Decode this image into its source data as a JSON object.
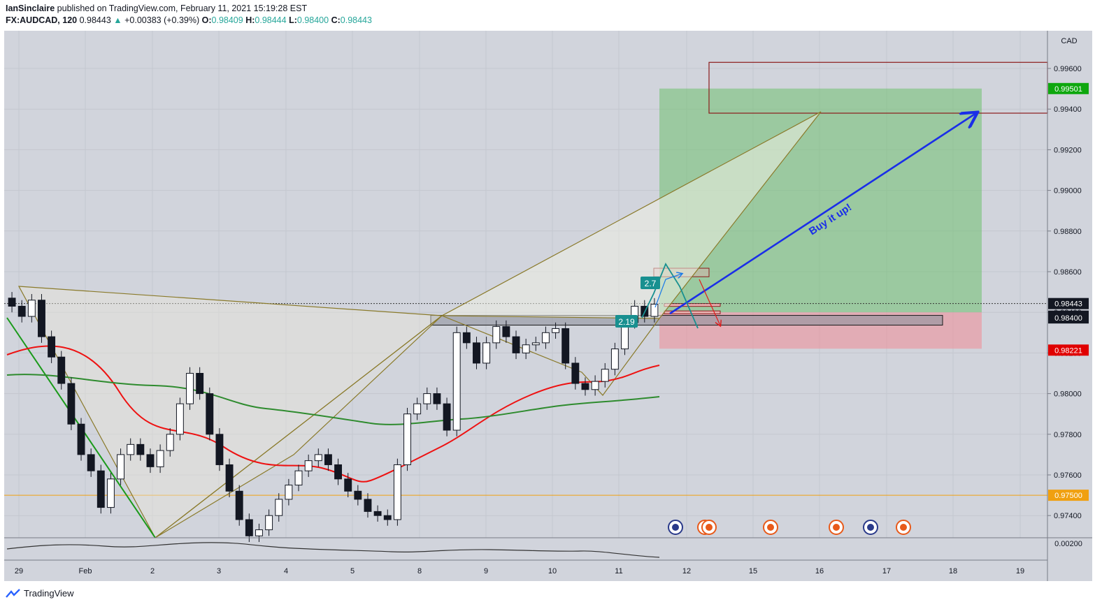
{
  "header": {
    "author": "IanSinclaire",
    "published": "published on TradingView.com, February 11, 2021 15:19:28 EST",
    "symbol": "FX:AUDCAD, 120",
    "last": "0.98443",
    "change": "+0.00383 (+0.39%)",
    "ohlc": [
      {
        "label": "O:",
        "value": "0.98409"
      },
      {
        "label": "H:",
        "value": "0.98444"
      },
      {
        "label": "L:",
        "value": "0.98400"
      },
      {
        "label": "C:",
        "value": "0.98443"
      }
    ]
  },
  "footer": {
    "brand": "TradingView"
  },
  "chart_data": {
    "type": "candlestick",
    "currency_label": "CAD",
    "x_tick_labels": [
      "29",
      "Feb",
      "2",
      "3",
      "4",
      "5",
      "8",
      "9",
      "10",
      "11",
      "12",
      "15",
      "16",
      "17",
      "18",
      "19"
    ],
    "y_tick_labels": [
      "0.99600",
      "0.99400",
      "0.99200",
      "0.99000",
      "0.98800",
      "0.98600",
      "0.98400",
      "0.98200",
      "0.98000",
      "0.97800",
      "0.97600",
      "0.97400"
    ],
    "ylim": [
      0.9726,
      0.9989
    ],
    "price_tags": [
      {
        "text": "0.99501",
        "color": "#0ea70e"
      },
      {
        "text": "0.98443",
        "color": "#131722"
      },
      {
        "text": "01:40:35",
        "color": "#131722"
      },
      {
        "text": "0.98400",
        "color": "#131722"
      },
      {
        "text": "0.98221",
        "color": "#e00000"
      },
      {
        "text": "0.97500",
        "color": "#f0a010"
      },
      {
        "text": "0.00200",
        "color": "#b2b5be"
      }
    ],
    "horizontal_levels": [
      {
        "price": 0.975,
        "color": "#f0a010"
      },
      {
        "price": 0.98443,
        "color": "#333333"
      }
    ],
    "target_zone": [
      0.984,
      0.99501
    ],
    "stop_zone": [
      0.98221,
      0.984
    ],
    "supply_zone": [
      0.9938,
      0.9963
    ],
    "support_zone": [
      0.98337,
      0.98385
    ],
    "annotations": [
      "Buy it up!",
      "2.7",
      "2.19"
    ],
    "ema_fast_color": "#ee1111",
    "ema_slow_color": "#2e8b2e",
    "series": [
      {
        "name": "",
        "values": [
          0.9843,
          0.9838,
          0.9846,
          0.9828,
          0.9818,
          0.9805,
          0.9785,
          0.977,
          0.9762,
          0.9744,
          0.9758,
          0.977,
          0.9775,
          0.977,
          0.9764,
          0.9772,
          0.978,
          0.9795,
          0.981,
          0.98,
          0.978,
          0.9765,
          0.9752,
          0.9738,
          0.973,
          0.9733,
          0.974,
          0.9748,
          0.9755,
          0.9762,
          0.9767,
          0.977,
          0.9765,
          0.9758,
          0.9752,
          0.9748,
          0.9742,
          0.974,
          0.9738,
          0.9765,
          0.979,
          0.9795,
          0.98,
          0.9795,
          0.9782,
          0.983,
          0.9825,
          0.9815,
          0.9825,
          0.9833,
          0.9828,
          0.982,
          0.9824,
          0.9825,
          0.983,
          0.9832,
          0.9815,
          0.9805,
          0.9802,
          0.9806,
          0.9812,
          0.9822,
          0.9835,
          0.9843,
          0.9838,
          0.9844
        ]
      }
    ]
  }
}
